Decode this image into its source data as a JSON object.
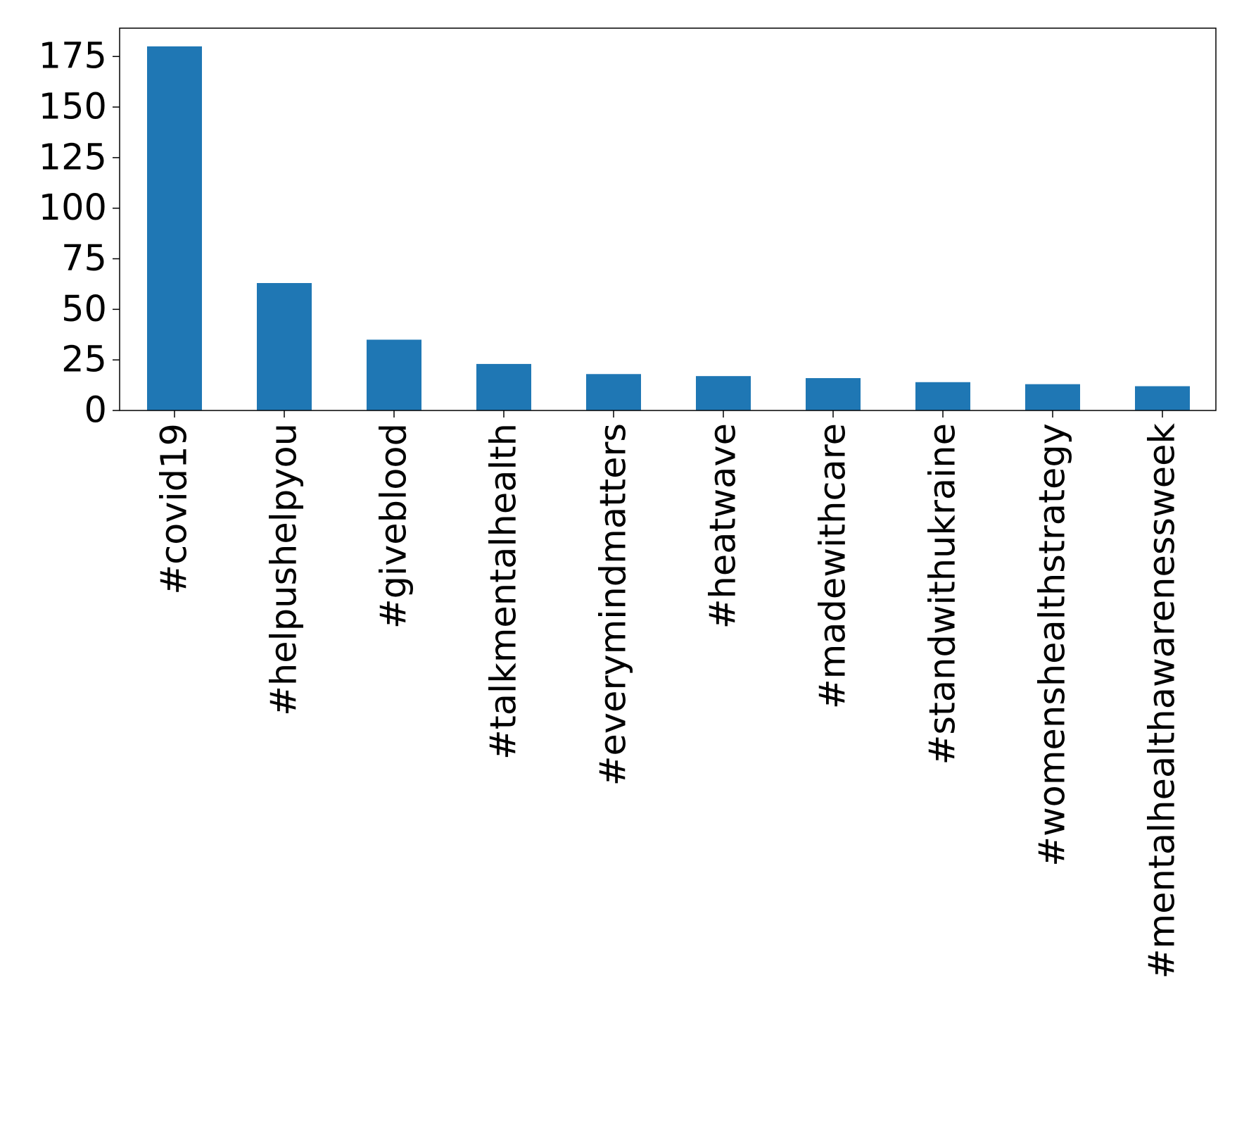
{
  "chart_data": {
    "type": "bar",
    "title": "",
    "xlabel": "",
    "ylabel": "",
    "categories": [
      "#covid19",
      "#helpushelpyou",
      "#giveblood",
      "#talkmentalhealth",
      "#everymindmatters",
      "#heatwave",
      "#madewithcare",
      "#standwithukraine",
      "#womenshealthstrategy",
      "#mentalhealthawarenessweek"
    ],
    "values": [
      180,
      63,
      35,
      23,
      18,
      17,
      16,
      14,
      13,
      12
    ],
    "ylim": [
      0,
      189
    ],
    "yticks": [
      0,
      25,
      50,
      75,
      100,
      125,
      150,
      175
    ],
    "ytick_labels": [
      "0",
      "25",
      "50",
      "75",
      "100",
      "125",
      "150",
      "175"
    ],
    "bar_color": "#1f77b4",
    "grid": false,
    "legend": "none"
  }
}
